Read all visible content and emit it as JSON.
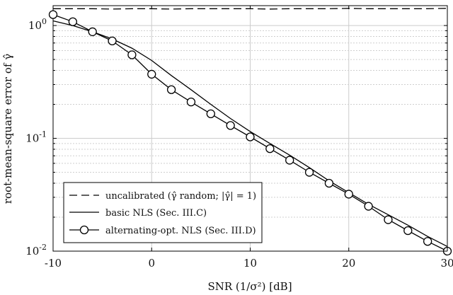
{
  "chart_data": {
    "type": "line",
    "xlabel": "SNR (1/σ²) [dB]",
    "ylabel": "root-mean-square error of γ̂",
    "xlim": [
      -10,
      30
    ],
    "ylim": [
      0.01,
      1.5
    ],
    "yscale": "log",
    "grid": true,
    "x_ticks": [
      -10,
      0,
      10,
      20,
      30
    ],
    "x_tick_labels": [
      "-10",
      "0",
      "10",
      "20",
      "30"
    ],
    "y_ticks": [
      {
        "value": 1,
        "base": "10",
        "exp": "0"
      },
      {
        "value": 0.1,
        "base": "10",
        "exp": "-1"
      },
      {
        "value": 0.01,
        "base": "10",
        "exp": "-2"
      }
    ],
    "legend": {
      "placement": "bottom-left",
      "entries": [
        {
          "series": "uncalibrated",
          "label": "uncalibrated (γ̂ random; |γ̂| = 1)"
        },
        {
          "series": "basic",
          "label": "basic NLS (Sec. III.C)"
        },
        {
          "series": "alternating",
          "label": "alternating-opt. NLS (Sec. III.D)"
        }
      ]
    },
    "series": [
      {
        "key": "uncalibrated",
        "name": "uncalibrated (γ̂ random; |γ̂| = 1)",
        "style": "dashed",
        "marker": "none",
        "x": [
          -10,
          -8,
          -6,
          -4,
          -2,
          0,
          2,
          4,
          6,
          8,
          10,
          12,
          14,
          16,
          18,
          20,
          22,
          24,
          26,
          28,
          30
        ],
        "y": [
          1.41,
          1.41,
          1.41,
          1.4,
          1.41,
          1.41,
          1.4,
          1.41,
          1.41,
          1.41,
          1.41,
          1.4,
          1.41,
          1.41,
          1.41,
          1.42,
          1.41,
          1.41,
          1.41,
          1.41,
          1.42
        ]
      },
      {
        "key": "basic",
        "name": "basic NLS (Sec. III.C)",
        "style": "solid",
        "marker": "none",
        "x": [
          -10,
          -8,
          -6,
          -4,
          -2,
          0,
          2,
          4,
          6,
          8,
          10,
          12,
          14,
          16,
          18,
          20,
          22,
          24,
          26,
          28,
          30
        ],
        "y": [
          1.1,
          1.0,
          0.88,
          0.76,
          0.63,
          0.49,
          0.36,
          0.27,
          0.2,
          0.15,
          0.115,
          0.09,
          0.071,
          0.055,
          0.042,
          0.033,
          0.026,
          0.021,
          0.017,
          0.0135,
          0.011
        ]
      },
      {
        "key": "alternating",
        "name": "alternating-opt. NLS (Sec. III.D)",
        "style": "solid",
        "marker": "circle",
        "x": [
          -10,
          -8,
          -6,
          -4,
          -2,
          0,
          2,
          4,
          6,
          8,
          10,
          12,
          14,
          16,
          18,
          20,
          22,
          24,
          26,
          28,
          30
        ],
        "y": [
          1.25,
          1.08,
          0.88,
          0.73,
          0.55,
          0.37,
          0.27,
          0.21,
          0.165,
          0.13,
          0.103,
          0.081,
          0.064,
          0.05,
          0.04,
          0.032,
          0.025,
          0.019,
          0.0152,
          0.0122,
          0.01
        ]
      }
    ]
  }
}
